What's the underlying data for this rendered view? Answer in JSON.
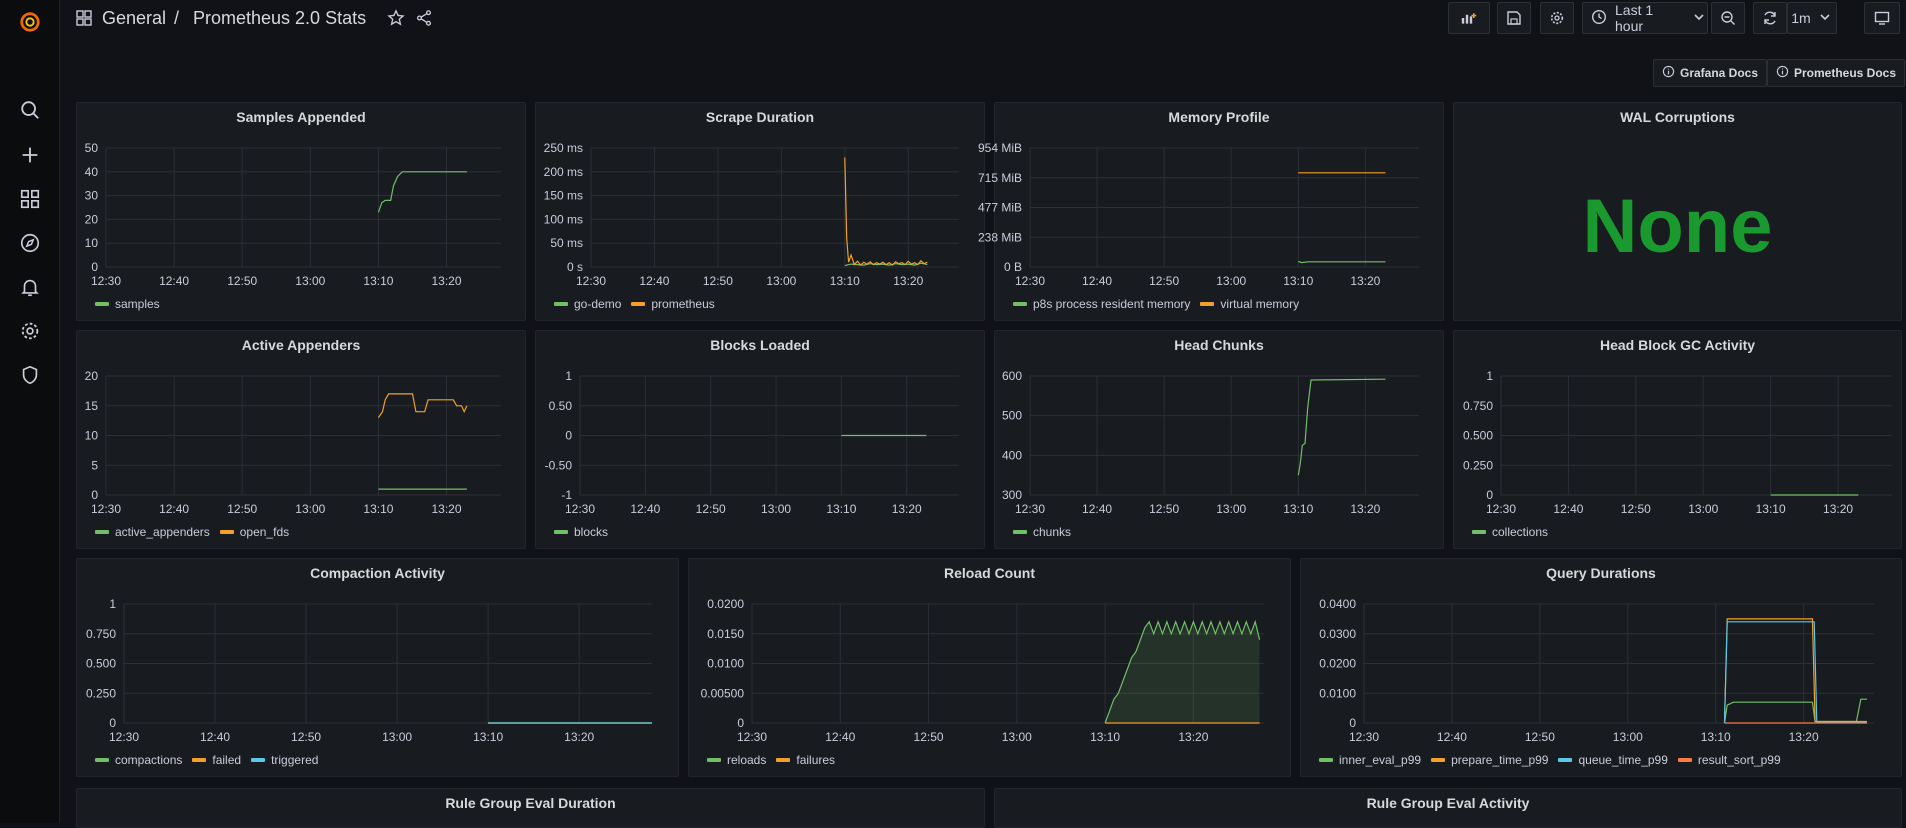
{
  "header": {
    "folder": "General",
    "separator": "/",
    "title": "Prometheus 2.0 Stats",
    "time_range": "Last 1 hour",
    "refresh": "1m"
  },
  "links": {
    "grafana_docs": "Grafana Docs",
    "prometheus_docs": "Prometheus Docs"
  },
  "colors": {
    "green": "#73bf69",
    "orange": "#f2a02b",
    "blue": "#5dc7e6",
    "red": "#ff7a40",
    "stat_green": "#1a9a2e"
  },
  "sidebar": {
    "icons": [
      "grafana-logo",
      "search-icon",
      "plus-icon",
      "dashboards-icon",
      "explore-icon",
      "alerting-icon",
      "settings-icon",
      "shield-icon"
    ]
  },
  "x_ticks": [
    "12:30",
    "12:40",
    "12:50",
    "13:00",
    "13:10",
    "13:20"
  ],
  "chart_data": [
    {
      "type": "line",
      "title": "Samples Appended",
      "yticks": [
        "0",
        "10",
        "20",
        "30",
        "40",
        "50"
      ],
      "ylim": [
        0,
        50
      ],
      "series": [
        {
          "name": "samples",
          "color": "green",
          "points": [
            [
              40,
              23
            ],
            [
              40.5,
              27
            ],
            [
              41,
              28
            ],
            [
              41.8,
              28
            ],
            [
              42.2,
              34
            ],
            [
              42.8,
              38
            ],
            [
              43.5,
              40
            ],
            [
              53,
              40
            ]
          ]
        }
      ]
    },
    {
      "type": "line",
      "title": "Scrape Duration",
      "yticks": [
        "0 s",
        "50 ms",
        "100 ms",
        "150 ms",
        "200 ms",
        "250 ms"
      ],
      "ylim": [
        0,
        250
      ],
      "series": [
        {
          "name": "go-demo",
          "color": "green",
          "points": [
            [
              40,
              3
            ],
            [
              41,
              6
            ],
            [
              42,
              5
            ],
            [
              43,
              4
            ],
            [
              44,
              7
            ],
            [
              45,
              5
            ],
            [
              46,
              6
            ],
            [
              47,
              4
            ],
            [
              48,
              7
            ],
            [
              49,
              5
            ],
            [
              50,
              6
            ],
            [
              51,
              4
            ],
            [
              52,
              8
            ],
            [
              53,
              5
            ]
          ]
        },
        {
          "name": "prometheus",
          "color": "orange",
          "points": [
            [
              40,
              230
            ],
            [
              40.3,
              60
            ],
            [
              40.6,
              10
            ],
            [
              41,
              25
            ],
            [
              41.5,
              5
            ],
            [
              42,
              12
            ],
            [
              42.5,
              4
            ],
            [
              43,
              10
            ],
            [
              43.5,
              6
            ],
            [
              44,
              11
            ],
            [
              44.5,
              5
            ],
            [
              45,
              9
            ],
            [
              45.5,
              6
            ],
            [
              46,
              10
            ],
            [
              46.5,
              5
            ],
            [
              47,
              9
            ],
            [
              47.5,
              4
            ],
            [
              48,
              11
            ],
            [
              48.5,
              7
            ],
            [
              49,
              9
            ],
            [
              49.5,
              5
            ],
            [
              50,
              12
            ],
            [
              50.5,
              6
            ],
            [
              51,
              9
            ],
            [
              51.5,
              5
            ],
            [
              52,
              13
            ],
            [
              52.5,
              7
            ],
            [
              53,
              10
            ]
          ]
        }
      ]
    },
    {
      "type": "line",
      "title": "Memory Profile",
      "yticks": [
        "0 B",
        "238 MiB",
        "477 MiB",
        "715 MiB",
        "954 MiB"
      ],
      "ylim": [
        0,
        954
      ],
      "series": [
        {
          "name": "p8s process resident memory",
          "color": "green",
          "points": [
            [
              40,
              45
            ],
            [
              40.5,
              35
            ],
            [
              41.5,
              42
            ],
            [
              53,
              42
            ]
          ]
        },
        {
          "name": "virtual memory",
          "color": "orange",
          "points": [
            [
              40,
              755
            ],
            [
              53,
              755
            ]
          ]
        }
      ]
    },
    {
      "type": "stat",
      "title": "WAL Corruptions",
      "value": "None"
    },
    {
      "type": "line",
      "title": "Active Appenders",
      "yticks": [
        "0",
        "5",
        "10",
        "15",
        "20"
      ],
      "ylim": [
        0,
        20
      ],
      "series": [
        {
          "name": "active_appenders",
          "color": "green",
          "points": [
            [
              40,
              1
            ],
            [
              53,
              1
            ]
          ]
        },
        {
          "name": "open_fds",
          "color": "orange",
          "points": [
            [
              40,
              13
            ],
            [
              40.6,
              14
            ],
            [
              41,
              16
            ],
            [
              41.5,
              17
            ],
            [
              45,
              17
            ],
            [
              45.5,
              14
            ],
            [
              46.8,
              14
            ],
            [
              47.3,
              16
            ],
            [
              51,
              16
            ],
            [
              51.5,
              15
            ],
            [
              52.2,
              15
            ],
            [
              52.6,
              14
            ],
            [
              53,
              15
            ]
          ]
        }
      ]
    },
    {
      "type": "line",
      "title": "Blocks Loaded",
      "yticks": [
        "-1",
        "-0.50",
        "0",
        "0.50",
        "1"
      ],
      "ylim": [
        -1,
        1
      ],
      "series": [
        {
          "name": "blocks",
          "color": "green",
          "points": [
            [
              40,
              0
            ],
            [
              53,
              0
            ]
          ]
        }
      ]
    },
    {
      "type": "line",
      "title": "Head Chunks",
      "yticks": [
        "300",
        "400",
        "500",
        "600"
      ],
      "ylim": [
        300,
        600
      ],
      "series": [
        {
          "name": "chunks",
          "color": "green",
          "points": [
            [
              40,
              350
            ],
            [
              40.3,
              380
            ],
            [
              40.6,
              425
            ],
            [
              41,
              430
            ],
            [
              41.4,
              520
            ],
            [
              41.9,
              590
            ],
            [
              53,
              592
            ]
          ]
        }
      ]
    },
    {
      "type": "line",
      "title": "Head Block GC Activity",
      "yticks": [
        "0",
        "0.250",
        "0.500",
        "0.750",
        "1"
      ],
      "ylim": [
        0,
        1
      ],
      "series": [
        {
          "name": "collections",
          "color": "green",
          "points": [
            [
              40,
              0
            ],
            [
              53,
              0
            ]
          ]
        }
      ]
    },
    {
      "type": "line",
      "title": "Compaction Activity",
      "yticks": [
        "0",
        "0.250",
        "0.500",
        "0.750",
        "1"
      ],
      "ylim": [
        0,
        1
      ],
      "series": [
        {
          "name": "compactions",
          "color": "green",
          "points": [
            [
              40,
              0
            ],
            [
              58,
              0
            ]
          ]
        },
        {
          "name": "failed",
          "color": "orange",
          "points": [
            [
              40,
              0
            ],
            [
              58,
              0
            ]
          ]
        },
        {
          "name": "triggered",
          "color": "blue",
          "points": [
            [
              40,
              0
            ],
            [
              58,
              0
            ]
          ]
        }
      ]
    },
    {
      "type": "area",
      "title": "Reload Count",
      "yticks": [
        "0",
        "0.00500",
        "0.0100",
        "0.0150",
        "0.0200"
      ],
      "ylim": [
        0,
        0.02
      ],
      "series": [
        {
          "name": "reloads",
          "color": "green",
          "points": [
            [
              40,
              0
            ],
            [
              40.5,
              0.002
            ],
            [
              41,
              0.004
            ],
            [
              41.5,
              0.005
            ],
            [
              42,
              0.007
            ],
            [
              42.5,
              0.009
            ],
            [
              43,
              0.011
            ],
            [
              43.5,
              0.012
            ],
            [
              44,
              0.014
            ],
            [
              44.5,
              0.016
            ],
            [
              45,
              0.017
            ],
            [
              45.5,
              0.015
            ],
            [
              46,
              0.017
            ],
            [
              46.5,
              0.015
            ],
            [
              47,
              0.017
            ],
            [
              47.5,
              0.015
            ],
            [
              48,
              0.017
            ],
            [
              48.5,
              0.015
            ],
            [
              49,
              0.017
            ],
            [
              49.5,
              0.015
            ],
            [
              50,
              0.017
            ],
            [
              50.5,
              0.015
            ],
            [
              51,
              0.017
            ],
            [
              51.5,
              0.015
            ],
            [
              52,
              0.017
            ],
            [
              52.5,
              0.015
            ],
            [
              53,
              0.017
            ],
            [
              53.5,
              0.015
            ],
            [
              54,
              0.017
            ],
            [
              54.5,
              0.015
            ],
            [
              55,
              0.017
            ],
            [
              55.5,
              0.015
            ],
            [
              56,
              0.017
            ],
            [
              56.5,
              0.015
            ],
            [
              57,
              0.017
            ],
            [
              57.5,
              0.014
            ]
          ]
        },
        {
          "name": "failures",
          "color": "orange",
          "points": [
            [
              40,
              0
            ],
            [
              57.5,
              0
            ]
          ]
        }
      ]
    },
    {
      "type": "line",
      "title": "Query Durations",
      "yticks": [
        "0",
        "0.0100",
        "0.0200",
        "0.0300",
        "0.0400"
      ],
      "ylim": [
        0,
        0.04
      ],
      "series": [
        {
          "name": "inner_eval_p99",
          "color": "green",
          "points": [
            [
              41,
              0
            ],
            [
              41.3,
              0.006
            ],
            [
              42,
              0.007
            ],
            [
              51,
              0.007
            ],
            [
              51.3,
              0.0005
            ],
            [
              56,
              0.0005
            ],
            [
              56.5,
              0.008
            ],
            [
              57.2,
              0.008
            ]
          ]
        },
        {
          "name": "prepare_time_p99",
          "color": "orange",
          "points": [
            [
              41,
              0
            ],
            [
              41.3,
              0.035
            ],
            [
              51,
              0.035
            ],
            [
              51.3,
              0.0005
            ],
            [
              57.2,
              0.0005
            ]
          ]
        },
        {
          "name": "queue_time_p99",
          "color": "blue",
          "points": [
            [
              41,
              0
            ],
            [
              41.3,
              0.034
            ],
            [
              51.2,
              0.034
            ],
            [
              51.5,
              0.0003
            ],
            [
              57.2,
              0.0003
            ]
          ]
        },
        {
          "name": "result_sort_p99",
          "color": "red",
          "points": [
            [
              41,
              0
            ],
            [
              57.2,
              0
            ]
          ]
        }
      ]
    }
  ],
  "row4": {
    "left_title": "Rule Group Eval Duration",
    "right_title": "Rule Group Eval Activity"
  }
}
